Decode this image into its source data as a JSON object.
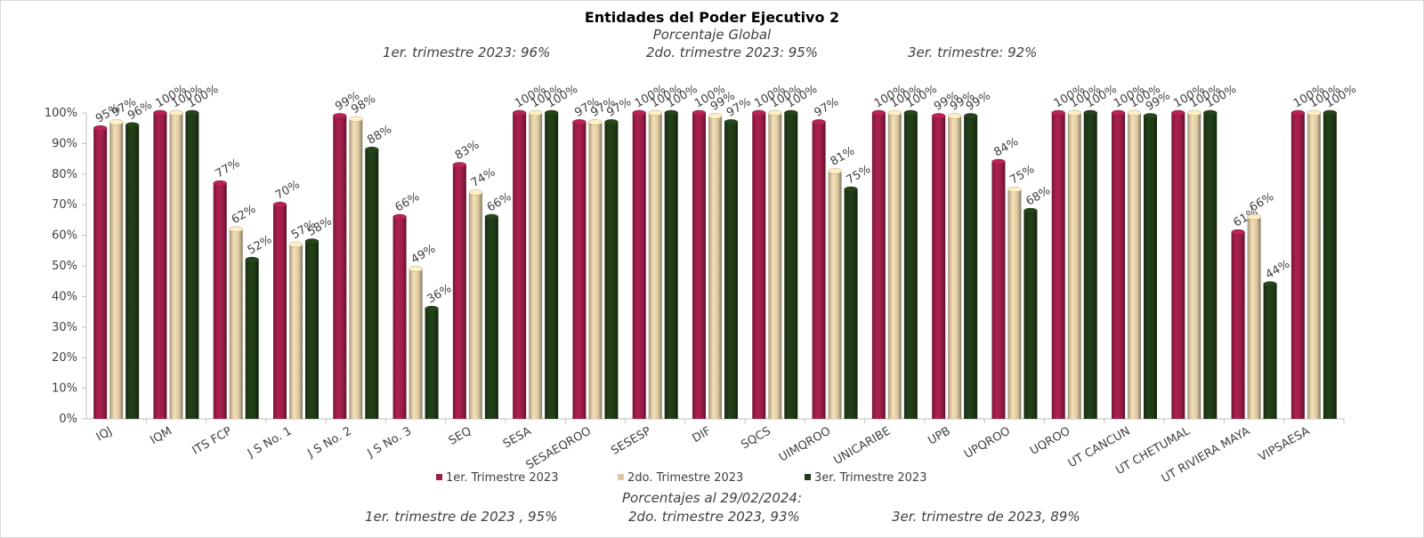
{
  "chart_data": {
    "type": "bar",
    "title": "Entidades del Poder Ejecutivo 2",
    "subtitle": "Porcentaje Global",
    "top_notes": [
      "1er. trimestre 2023: 96%",
      "2do. trimestre 2023: 95%",
      "3er. trimestre: 92%"
    ],
    "bottom_heading": "Porcentajes al 29/02/2024:",
    "bottom_notes": [
      "1er. trimestre de 2023 , 95%",
      "2do. trimestre 2023, 93%",
      "3er. trimestre de 2023, 89%"
    ],
    "categories": [
      "IQJ",
      "IQM",
      "ITS FCP",
      "J S No. 1",
      "J S No. 2",
      "J S No. 3",
      "SEQ",
      "SESA",
      "SESAEQROO",
      "SESESP",
      "DIF",
      "SQCS",
      "UIMQROO",
      "UNICARIBE",
      "UPB",
      "UPQROO",
      "UQROO",
      "UT CANCUN",
      "UT CHETUMAL",
      "UT RIVIERA MAYA",
      "VIPSAESA"
    ],
    "series": [
      {
        "name": "1er. Trimestre 2023",
        "color": "#9b1d47",
        "values": [
          95,
          100,
          77,
          70,
          99,
          66,
          83,
          100,
          97,
          100,
          100,
          100,
          97,
          100,
          99,
          84,
          100,
          100,
          100,
          61,
          100
        ]
      },
      {
        "name": "2do. Trimestre 2023",
        "color": "#dcc9a3",
        "values": [
          97,
          100,
          62,
          57,
          98,
          49,
          74,
          100,
          97,
          100,
          99,
          100,
          81,
          100,
          99,
          75,
          100,
          100,
          100,
          66,
          100
        ]
      },
      {
        "name": "3er. Trimestre 2023",
        "color": "#1f3a16",
        "values": [
          96,
          100,
          52,
          58,
          88,
          36,
          66,
          100,
          97,
          100,
          97,
          100,
          75,
          100,
          99,
          68,
          100,
          99,
          100,
          44,
          100
        ]
      }
    ],
    "y_ticks": [
      "0%",
      "10%",
      "20%",
      "30%",
      "40%",
      "50%",
      "60%",
      "70%",
      "80%",
      "90%",
      "100%"
    ],
    "ylim": [
      0,
      100
    ],
    "grid": false,
    "legend_position": "bottom"
  }
}
